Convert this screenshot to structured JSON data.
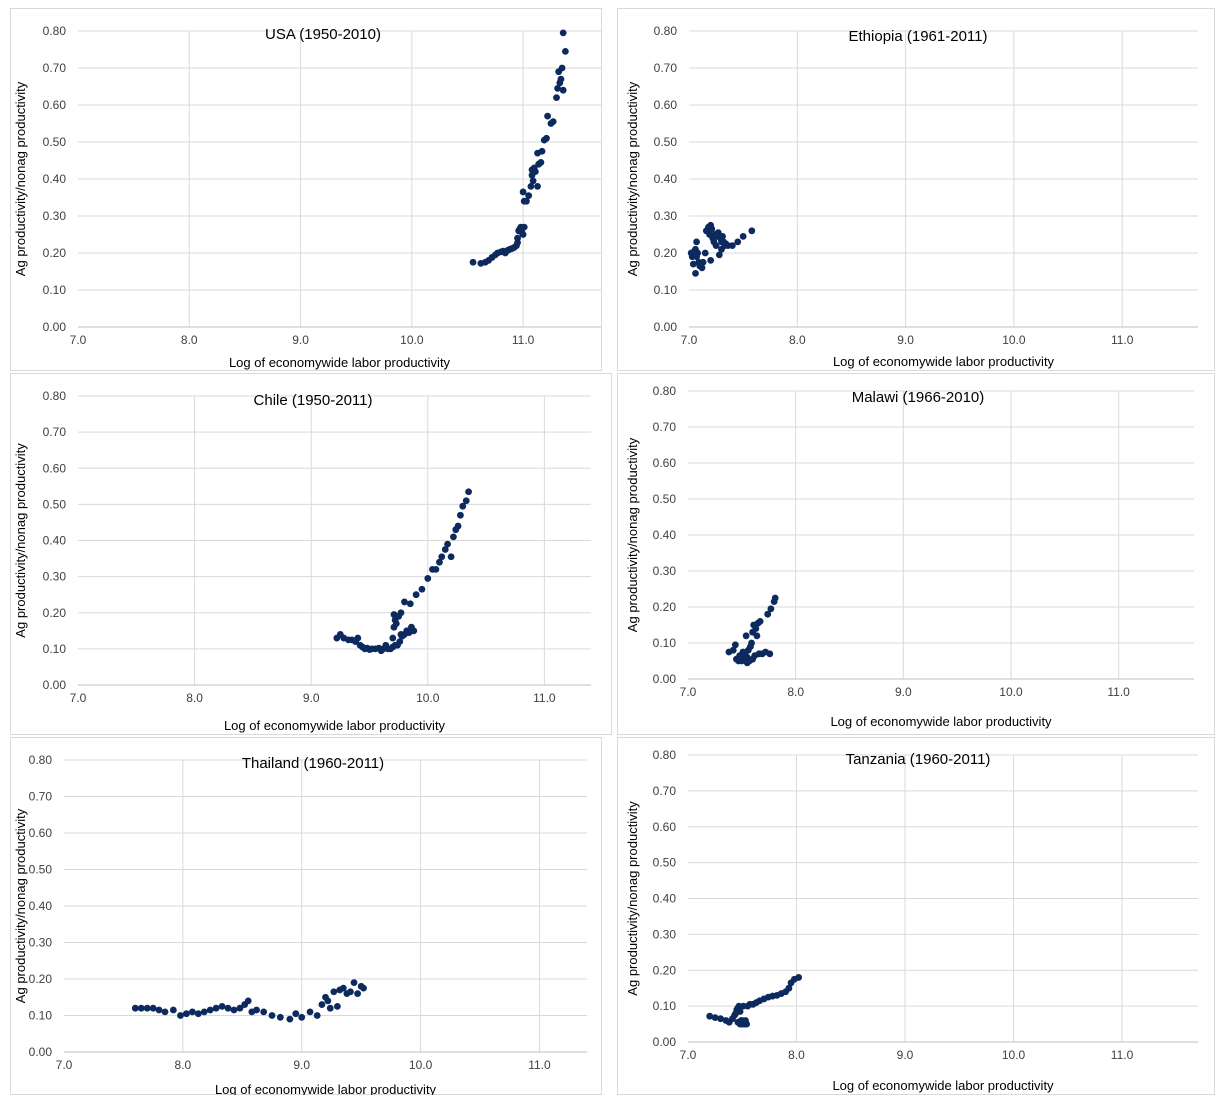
{
  "colors": {
    "marker": "#0d2a5e",
    "grid": "#d9d9d9",
    "axis_text": "#404040"
  },
  "chart_data": [
    {
      "type": "scatter",
      "title": "USA (1950-2010)",
      "xlabel": "Log of economywide labor productivity",
      "ylabel": "Ag productivity/nonag productivity",
      "xlim": [
        7.0,
        11.7
      ],
      "ylim": [
        0.0,
        0.8
      ],
      "xticks": [
        "7.0",
        "8.0",
        "9.0",
        "10.0",
        "11.0"
      ],
      "yticks": [
        "0.00",
        "0.10",
        "0.20",
        "0.30",
        "0.40",
        "0.50",
        "0.60",
        "0.70",
        "0.80"
      ],
      "grid": true,
      "points": [
        [
          10.55,
          0.175
        ],
        [
          10.62,
          0.172
        ],
        [
          10.66,
          0.175
        ],
        [
          10.69,
          0.18
        ],
        [
          10.72,
          0.188
        ],
        [
          10.75,
          0.195
        ],
        [
          10.77,
          0.2
        ],
        [
          10.8,
          0.203
        ],
        [
          10.82,
          0.205
        ],
        [
          10.84,
          0.2
        ],
        [
          10.86,
          0.207
        ],
        [
          10.88,
          0.21
        ],
        [
          10.9,
          0.212
        ],
        [
          10.92,
          0.215
        ],
        [
          10.94,
          0.22
        ],
        [
          10.95,
          0.228
        ],
        [
          10.95,
          0.24
        ],
        [
          10.96,
          0.26
        ],
        [
          10.97,
          0.265
        ],
        [
          10.98,
          0.27
        ],
        [
          10.99,
          0.255
        ],
        [
          11.0,
          0.25
        ],
        [
          11.01,
          0.27
        ],
        [
          11.0,
          0.365
        ],
        [
          11.01,
          0.34
        ],
        [
          11.03,
          0.34
        ],
        [
          11.05,
          0.355
        ],
        [
          11.07,
          0.38
        ],
        [
          11.08,
          0.41
        ],
        [
          11.08,
          0.425
        ],
        [
          11.09,
          0.395
        ],
        [
          11.1,
          0.43
        ],
        [
          11.11,
          0.42
        ],
        [
          11.13,
          0.38
        ],
        [
          11.14,
          0.44
        ],
        [
          11.13,
          0.47
        ],
        [
          11.16,
          0.445
        ],
        [
          11.17,
          0.475
        ],
        [
          11.19,
          0.505
        ],
        [
          11.21,
          0.51
        ],
        [
          11.22,
          0.57
        ],
        [
          11.25,
          0.55
        ],
        [
          11.27,
          0.555
        ],
        [
          11.3,
          0.62
        ],
        [
          11.31,
          0.645
        ],
        [
          11.32,
          0.69
        ],
        [
          11.34,
          0.67
        ],
        [
          11.35,
          0.7
        ],
        [
          11.36,
          0.64
        ],
        [
          11.36,
          0.795
        ],
        [
          11.38,
          0.745
        ],
        [
          11.33,
          0.66
        ]
      ]
    },
    {
      "type": "scatter",
      "title": "Ethiopia (1961-2011)",
      "xlabel": "Log of economywide labor productivity",
      "ylabel": "Ag productivity/nonag productivity",
      "xlim": [
        7.0,
        11.7
      ],
      "ylim": [
        0.0,
        0.8
      ],
      "xticks": [
        "7.0",
        "8.0",
        "9.0",
        "10.0",
        "11.0"
      ],
      "yticks": [
        "0.00",
        "0.10",
        "0.20",
        "0.30",
        "0.40",
        "0.50",
        "0.60",
        "0.70",
        "0.80"
      ],
      "grid": true,
      "points": [
        [
          7.02,
          0.2
        ],
        [
          7.03,
          0.19
        ],
        [
          7.04,
          0.17
        ],
        [
          7.05,
          0.205
        ],
        [
          7.06,
          0.21
        ],
        [
          7.07,
          0.19
        ],
        [
          7.07,
          0.23
        ],
        [
          7.08,
          0.2
        ],
        [
          7.06,
          0.145
        ],
        [
          7.09,
          0.175
        ],
        [
          7.1,
          0.165
        ],
        [
          7.12,
          0.16
        ],
        [
          7.13,
          0.175
        ],
        [
          7.15,
          0.2
        ],
        [
          7.16,
          0.26
        ],
        [
          7.18,
          0.27
        ],
        [
          7.19,
          0.25
        ],
        [
          7.2,
          0.275
        ],
        [
          7.21,
          0.265
        ],
        [
          7.22,
          0.24
        ],
        [
          7.23,
          0.23
        ],
        [
          7.24,
          0.25
        ],
        [
          7.25,
          0.22
        ],
        [
          7.26,
          0.245
        ],
        [
          7.27,
          0.255
        ],
        [
          7.28,
          0.245
        ],
        [
          7.29,
          0.24
        ],
        [
          7.3,
          0.23
        ],
        [
          7.31,
          0.245
        ],
        [
          7.32,
          0.23
        ],
        [
          7.33,
          0.22
        ],
        [
          7.34,
          0.225
        ],
        [
          7.36,
          0.22
        ],
        [
          7.4,
          0.22
        ],
        [
          7.45,
          0.23
        ],
        [
          7.5,
          0.245
        ],
        [
          7.58,
          0.26
        ],
        [
          7.2,
          0.18
        ],
        [
          7.28,
          0.195
        ],
        [
          7.3,
          0.21
        ]
      ]
    },
    {
      "type": "scatter",
      "title": "Chile (1950-2011)",
      "xlabel": "Log of economywide labor productivity",
      "ylabel": "Ag productivity/nonag productivity",
      "xlim": [
        7.0,
        11.4
      ],
      "ylim": [
        0.0,
        0.8
      ],
      "xticks": [
        "7.0",
        "8.0",
        "9.0",
        "10.0",
        "11.0"
      ],
      "yticks": [
        "0.00",
        "0.10",
        "0.20",
        "0.30",
        "0.40",
        "0.50",
        "0.60",
        "0.70",
        "0.80"
      ],
      "grid": true,
      "points": [
        [
          9.22,
          0.13
        ],
        [
          9.25,
          0.14
        ],
        [
          9.28,
          0.13
        ],
        [
          9.32,
          0.125
        ],
        [
          9.35,
          0.125
        ],
        [
          9.38,
          0.12
        ],
        [
          9.4,
          0.13
        ],
        [
          9.42,
          0.11
        ],
        [
          9.44,
          0.105
        ],
        [
          9.46,
          0.1
        ],
        [
          9.48,
          0.102
        ],
        [
          9.5,
          0.098
        ],
        [
          9.52,
          0.1
        ],
        [
          9.55,
          0.1
        ],
        [
          9.58,
          0.102
        ],
        [
          9.6,
          0.095
        ],
        [
          9.62,
          0.1
        ],
        [
          9.64,
          0.11
        ],
        [
          9.66,
          0.1
        ],
        [
          9.68,
          0.1
        ],
        [
          9.7,
          0.105
        ],
        [
          9.72,
          0.11
        ],
        [
          9.74,
          0.11
        ],
        [
          9.76,
          0.12
        ],
        [
          9.77,
          0.14
        ],
        [
          9.78,
          0.135
        ],
        [
          9.8,
          0.14
        ],
        [
          9.82,
          0.15
        ],
        [
          9.84,
          0.145
        ],
        [
          9.86,
          0.16
        ],
        [
          9.88,
          0.15
        ],
        [
          9.7,
          0.13
        ],
        [
          9.71,
          0.16
        ],
        [
          9.72,
          0.18
        ],
        [
          9.71,
          0.195
        ],
        [
          9.73,
          0.17
        ],
        [
          9.75,
          0.19
        ],
        [
          9.77,
          0.2
        ],
        [
          9.8,
          0.23
        ],
        [
          9.85,
          0.225
        ],
        [
          9.9,
          0.25
        ],
        [
          9.95,
          0.265
        ],
        [
          10.0,
          0.295
        ],
        [
          10.04,
          0.32
        ],
        [
          10.07,
          0.32
        ],
        [
          10.1,
          0.34
        ],
        [
          10.12,
          0.355
        ],
        [
          10.15,
          0.375
        ],
        [
          10.17,
          0.39
        ],
        [
          10.2,
          0.355
        ],
        [
          10.22,
          0.41
        ],
        [
          10.24,
          0.43
        ],
        [
          10.26,
          0.44
        ],
        [
          10.28,
          0.47
        ],
        [
          10.3,
          0.495
        ],
        [
          10.33,
          0.51
        ],
        [
          10.35,
          0.535
        ]
      ]
    },
    {
      "type": "scatter",
      "title": "Malawi (1966-2010)",
      "xlabel": "Log of economywide labor productivity",
      "ylabel": "Ag productivity/nonag productivity",
      "xlim": [
        7.0,
        11.7
      ],
      "ylim": [
        0.0,
        0.8
      ],
      "xticks": [
        "7.0",
        "8.0",
        "9.0",
        "10.0",
        "11.0"
      ],
      "yticks": [
        "0.00",
        "0.10",
        "0.20",
        "0.30",
        "0.40",
        "0.50",
        "0.60",
        "0.70",
        "0.80"
      ],
      "grid": true,
      "points": [
        [
          7.38,
          0.075
        ],
        [
          7.42,
          0.08
        ],
        [
          7.44,
          0.095
        ],
        [
          7.45,
          0.055
        ],
        [
          7.47,
          0.05
        ],
        [
          7.48,
          0.065
        ],
        [
          7.5,
          0.06
        ],
        [
          7.51,
          0.075
        ],
        [
          7.52,
          0.055
        ],
        [
          7.53,
          0.07
        ],
        [
          7.54,
          0.12
        ],
        [
          7.55,
          0.06
        ],
        [
          7.56,
          0.08
        ],
        [
          7.57,
          0.05
        ],
        [
          7.58,
          0.09
        ],
        [
          7.59,
          0.1
        ],
        [
          7.6,
          0.13
        ],
        [
          7.61,
          0.15
        ],
        [
          7.62,
          0.065
        ],
        [
          7.63,
          0.14
        ],
        [
          7.64,
          0.12
        ],
        [
          7.65,
          0.155
        ],
        [
          7.66,
          0.07
        ],
        [
          7.67,
          0.16
        ],
        [
          7.69,
          0.07
        ],
        [
          7.72,
          0.075
        ],
        [
          7.74,
          0.18
        ],
        [
          7.77,
          0.195
        ],
        [
          7.8,
          0.215
        ],
        [
          7.81,
          0.225
        ],
        [
          7.76,
          0.07
        ],
        [
          7.5,
          0.05
        ],
        [
          7.55,
          0.045
        ],
        [
          7.6,
          0.055
        ]
      ]
    },
    {
      "type": "scatter",
      "title": "Thailand (1960-2011)",
      "xlabel": "Log of economywide labor productivity",
      "ylabel": "Ag productivity/nonag productivity",
      "xlim": [
        7.0,
        11.4
      ],
      "ylim": [
        0.0,
        0.8
      ],
      "xticks": [
        "7.0",
        "8.0",
        "9.0",
        "10.0",
        "11.0"
      ],
      "yticks": [
        "0.00",
        "0.10",
        "0.20",
        "0.30",
        "0.40",
        "0.50",
        "0.60",
        "0.70",
        "0.80"
      ],
      "grid": true,
      "points": [
        [
          7.6,
          0.12
        ],
        [
          7.65,
          0.12
        ],
        [
          7.7,
          0.12
        ],
        [
          7.75,
          0.12
        ],
        [
          7.8,
          0.115
        ],
        [
          7.85,
          0.11
        ],
        [
          7.92,
          0.115
        ],
        [
          7.98,
          0.1
        ],
        [
          8.03,
          0.105
        ],
        [
          8.08,
          0.11
        ],
        [
          8.13,
          0.105
        ],
        [
          8.18,
          0.11
        ],
        [
          8.23,
          0.115
        ],
        [
          8.28,
          0.12
        ],
        [
          8.33,
          0.125
        ],
        [
          8.38,
          0.12
        ],
        [
          8.43,
          0.115
        ],
        [
          8.48,
          0.12
        ],
        [
          8.52,
          0.13
        ],
        [
          8.55,
          0.14
        ],
        [
          8.58,
          0.11
        ],
        [
          8.62,
          0.115
        ],
        [
          8.68,
          0.11
        ],
        [
          8.75,
          0.1
        ],
        [
          8.82,
          0.095
        ],
        [
          8.9,
          0.09
        ],
        [
          8.95,
          0.105
        ],
        [
          9.0,
          0.095
        ],
        [
          9.07,
          0.11
        ],
        [
          9.13,
          0.1
        ],
        [
          9.17,
          0.13
        ],
        [
          9.2,
          0.15
        ],
        [
          9.22,
          0.14
        ],
        [
          9.24,
          0.12
        ],
        [
          9.27,
          0.165
        ],
        [
          9.3,
          0.125
        ],
        [
          9.32,
          0.17
        ],
        [
          9.35,
          0.175
        ],
        [
          9.38,
          0.16
        ],
        [
          9.41,
          0.165
        ],
        [
          9.44,
          0.19
        ],
        [
          9.47,
          0.16
        ],
        [
          9.5,
          0.18
        ],
        [
          9.52,
          0.175
        ]
      ]
    },
    {
      "type": "scatter",
      "title": "Tanzania (1960-2011)",
      "xlabel": "Log of economywide labor productivity",
      "ylabel": "Ag productivity/nonag productivity",
      "xlim": [
        7.0,
        11.7
      ],
      "ylim": [
        0.0,
        0.8
      ],
      "xticks": [
        "7.0",
        "8.0",
        "9.0",
        "10.0",
        "11.0"
      ],
      "yticks": [
        "0.00",
        "0.10",
        "0.20",
        "0.30",
        "0.40",
        "0.50",
        "0.60",
        "0.70",
        "0.80"
      ],
      "grid": true,
      "points": [
        [
          7.2,
          0.072
        ],
        [
          7.25,
          0.068
        ],
        [
          7.3,
          0.065
        ],
        [
          7.35,
          0.06
        ],
        [
          7.38,
          0.055
        ],
        [
          7.41,
          0.065
        ],
        [
          7.43,
          0.075
        ],
        [
          7.44,
          0.08
        ],
        [
          7.45,
          0.09
        ],
        [
          7.46,
          0.095
        ],
        [
          7.47,
          0.1
        ],
        [
          7.48,
          0.085
        ],
        [
          7.49,
          0.06
        ],
        [
          7.5,
          0.05
        ],
        [
          7.51,
          0.1
        ],
        [
          7.52,
          0.055
        ],
        [
          7.53,
          0.06
        ],
        [
          7.54,
          0.05
        ],
        [
          7.55,
          0.1
        ],
        [
          7.57,
          0.105
        ],
        [
          7.6,
          0.105
        ],
        [
          7.63,
          0.11
        ],
        [
          7.66,
          0.115
        ],
        [
          7.7,
          0.12
        ],
        [
          7.74,
          0.125
        ],
        [
          7.78,
          0.128
        ],
        [
          7.82,
          0.13
        ],
        [
          7.86,
          0.135
        ],
        [
          7.9,
          0.14
        ],
        [
          7.93,
          0.15
        ],
        [
          7.95,
          0.165
        ],
        [
          7.98,
          0.175
        ],
        [
          8.02,
          0.18
        ],
        [
          7.46,
          0.055
        ],
        [
          7.48,
          0.05
        ],
        [
          7.5,
          0.06
        ],
        [
          7.52,
          0.05
        ]
      ]
    }
  ]
}
